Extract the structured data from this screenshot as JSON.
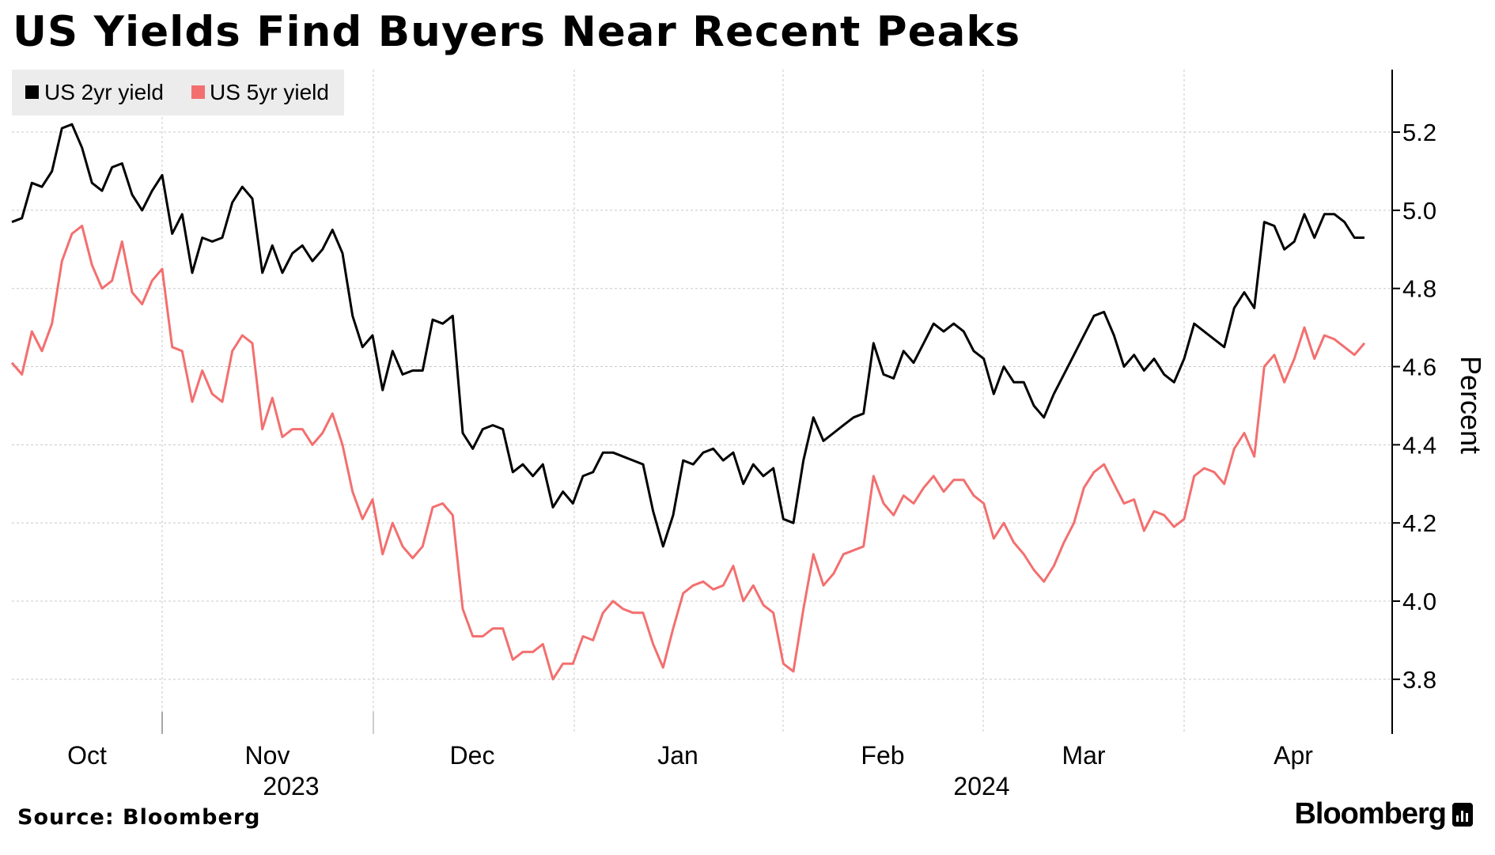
{
  "title": "US Yields Find Buyers Near Recent Peaks",
  "source": "Source: Bloomberg",
  "brand": "Bloomberg",
  "chart_data": {
    "type": "line",
    "ylabel": "Percent",
    "ylim": [
      3.66,
      5.36
    ],
    "yticks": [
      "3.8",
      "4.0",
      "4.2",
      "4.4",
      "4.6",
      "4.8",
      "5.0",
      "5.2"
    ],
    "months": [
      "Oct",
      "Nov",
      "Dec",
      "Jan",
      "Feb",
      "Mar",
      "Apr"
    ],
    "years": [
      "2023",
      "2024"
    ],
    "grid": true,
    "legend_position": "top-left",
    "series": [
      {
        "name": "US 2yr yield",
        "color": "#000000",
        "values": [
          4.97,
          4.98,
          5.07,
          5.06,
          5.1,
          5.21,
          5.22,
          5.16,
          5.07,
          5.05,
          5.11,
          5.12,
          5.04,
          5.0,
          5.05,
          5.09,
          4.94,
          4.99,
          4.84,
          4.93,
          4.92,
          4.93,
          5.02,
          5.06,
          5.03,
          4.84,
          4.91,
          4.84,
          4.89,
          4.91,
          4.87,
          4.9,
          4.95,
          4.89,
          4.73,
          4.65,
          4.68,
          4.54,
          4.64,
          4.58,
          4.59,
          4.59,
          4.72,
          4.71,
          4.73,
          4.43,
          4.39,
          4.44,
          4.45,
          4.44,
          4.33,
          4.35,
          4.32,
          4.35,
          4.24,
          4.28,
          4.25,
          4.32,
          4.33,
          4.38,
          4.38,
          4.37,
          4.36,
          4.35,
          4.23,
          4.14,
          4.22,
          4.36,
          4.35,
          4.38,
          4.39,
          4.36,
          4.38,
          4.3,
          4.35,
          4.32,
          4.34,
          4.21,
          4.2,
          4.36,
          4.47,
          4.41,
          4.43,
          4.45,
          4.47,
          4.48,
          4.66,
          4.58,
          4.57,
          4.64,
          4.61,
          4.66,
          4.71,
          4.69,
          4.71,
          4.69,
          4.64,
          4.62,
          4.53,
          4.6,
          4.56,
          4.56,
          4.5,
          4.47,
          4.53,
          4.58,
          4.63,
          4.68,
          4.73,
          4.74,
          4.68,
          4.6,
          4.63,
          4.59,
          4.62,
          4.58,
          4.56,
          4.62,
          4.71,
          4.69,
          4.67,
          4.65,
          4.75,
          4.79,
          4.75,
          4.97,
          4.96,
          4.9,
          4.92,
          4.99,
          4.93,
          4.99,
          4.99,
          4.97,
          4.93,
          4.93
        ]
      },
      {
        "name": "US 5yr yield",
        "color": "#f36f6f",
        "values": [
          4.61,
          4.58,
          4.69,
          4.64,
          4.71,
          4.87,
          4.94,
          4.96,
          4.86,
          4.8,
          4.82,
          4.92,
          4.79,
          4.76,
          4.82,
          4.85,
          4.65,
          4.64,
          4.51,
          4.59,
          4.53,
          4.51,
          4.64,
          4.68,
          4.66,
          4.44,
          4.52,
          4.42,
          4.44,
          4.44,
          4.4,
          4.43,
          4.48,
          4.4,
          4.28,
          4.21,
          4.26,
          4.12,
          4.2,
          4.14,
          4.11,
          4.14,
          4.24,
          4.25,
          4.22,
          3.98,
          3.91,
          3.91,
          3.93,
          3.93,
          3.85,
          3.87,
          3.87,
          3.89,
          3.8,
          3.84,
          3.84,
          3.91,
          3.9,
          3.97,
          4.0,
          3.98,
          3.97,
          3.97,
          3.89,
          3.83,
          3.93,
          4.02,
          4.04,
          4.05,
          4.03,
          4.04,
          4.09,
          4.0,
          4.04,
          3.99,
          3.97,
          3.84,
          3.82,
          3.98,
          4.12,
          4.04,
          4.07,
          4.12,
          4.13,
          4.14,
          4.32,
          4.25,
          4.22,
          4.27,
          4.25,
          4.29,
          4.32,
          4.28,
          4.31,
          4.31,
          4.27,
          4.25,
          4.16,
          4.2,
          4.15,
          4.12,
          4.08,
          4.05,
          4.09,
          4.15,
          4.2,
          4.29,
          4.33,
          4.35,
          4.3,
          4.25,
          4.26,
          4.18,
          4.23,
          4.22,
          4.19,
          4.21,
          4.32,
          4.34,
          4.33,
          4.3,
          4.39,
          4.43,
          4.37,
          4.6,
          4.63,
          4.56,
          4.62,
          4.7,
          4.62,
          4.68,
          4.67,
          4.65,
          4.63,
          4.66
        ]
      }
    ]
  }
}
